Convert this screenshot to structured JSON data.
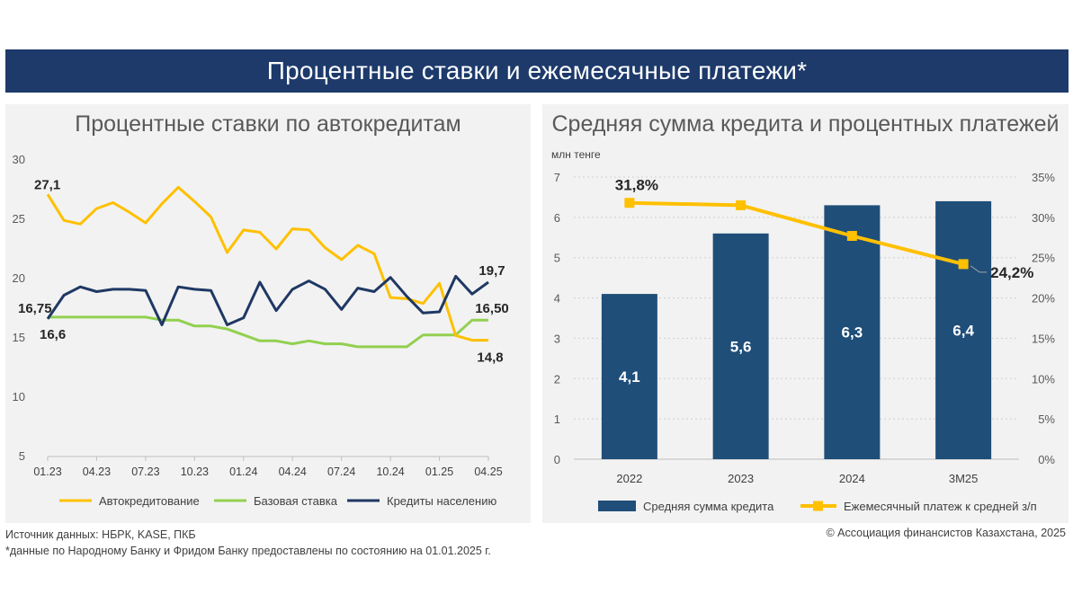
{
  "header": {
    "title": "Процентные ставки и ежемесячные платежи*"
  },
  "left_panel": {
    "title": "Процентные ставки по автокредитам"
  },
  "right_panel": {
    "title": "Средняя сумма кредита и процентных платежей",
    "unit": "млн тенге"
  },
  "colors": {
    "banner": "#1d3a6b",
    "auto": "#ffc000",
    "base": "#92d050",
    "loans": "#1f3864",
    "bar": "#1f4e79",
    "payment": "#ffc000"
  },
  "chart_data": [
    {
      "type": "line",
      "title": "Процентные ставки по автокредитам",
      "ylim": [
        5,
        30
      ],
      "yticks": [
        "5",
        "10",
        "15",
        "20",
        "25",
        "30"
      ],
      "xticks": [
        "01.23",
        "04.23",
        "07.23",
        "10.23",
        "01.24",
        "04.24",
        "07.24",
        "10.24",
        "01.25",
        "04.25"
      ],
      "x_count": 28,
      "series": [
        {
          "name": "Автокредитование",
          "values": [
            27.1,
            24.9,
            24.6,
            25.9,
            26.4,
            25.6,
            24.7,
            26.3,
            27.7,
            26.5,
            25.2,
            22.2,
            24.1,
            23.9,
            22.5,
            24.2,
            24.1,
            22.6,
            21.6,
            22.8,
            22.1,
            18.4,
            18.3,
            17.9,
            19.6,
            15.2,
            14.8,
            14.8
          ],
          "start_label": "27,1",
          "end_label": "14,8"
        },
        {
          "name": "Базовая ставка",
          "values": [
            16.75,
            16.75,
            16.75,
            16.75,
            16.75,
            16.75,
            16.75,
            16.5,
            16.5,
            16.0,
            16.0,
            15.75,
            15.25,
            14.75,
            14.75,
            14.5,
            14.75,
            14.5,
            14.5,
            14.25,
            14.25,
            14.25,
            14.25,
            15.25,
            15.25,
            15.25,
            16.5,
            16.5
          ],
          "start_label": "16,75",
          "end_label": "16,50"
        },
        {
          "name": "Кредиты населению",
          "values": [
            16.6,
            18.6,
            19.3,
            18.9,
            19.1,
            19.1,
            19.0,
            16.1,
            19.3,
            19.1,
            19.0,
            16.1,
            16.7,
            19.7,
            17.3,
            19.1,
            19.8,
            19.1,
            17.4,
            19.2,
            18.9,
            20.1,
            18.5,
            17.1,
            17.2,
            20.2,
            18.7,
            19.7
          ],
          "start_label": "16,6",
          "end_label": "19,7"
        }
      ]
    },
    {
      "type": "bar",
      "title": "Средняя сумма кредита и процентных платежей",
      "ylabel": "млн тенге",
      "ylim": [
        0,
        7
      ],
      "yticks": [
        "0",
        "1",
        "2",
        "3",
        "4",
        "5",
        "6",
        "7"
      ],
      "y2lim": [
        0,
        35
      ],
      "y2ticks": [
        "0%",
        "5%",
        "10%",
        "15%",
        "20%",
        "25%",
        "30%",
        "35%"
      ],
      "categories": [
        "2022",
        "2023",
        "2024",
        "3M25"
      ],
      "series": [
        {
          "name": "Средняя сумма кредита",
          "type": "bar",
          "values": [
            4.1,
            5.6,
            6.3,
            6.4
          ],
          "labels": [
            "4,1",
            "5,6",
            "6,3",
            "6,4"
          ]
        },
        {
          "name": "Ежемесячный платеж к средней з/п",
          "type": "line",
          "axis": "secondary",
          "values": [
            31.8,
            31.5,
            27.7,
            24.2
          ],
          "labels": [
            "31,8%",
            "",
            "",
            "24,2%"
          ]
        }
      ]
    }
  ],
  "footer": {
    "source": "Источник данных: НБРК, KASE, ПКБ",
    "note": "*данные по Народному Банку и Фридом Банку предоставлены по состоянию на 01.01.2025 г.",
    "copyright": "© Ассоциация финансистов Казахстана, 2025"
  }
}
